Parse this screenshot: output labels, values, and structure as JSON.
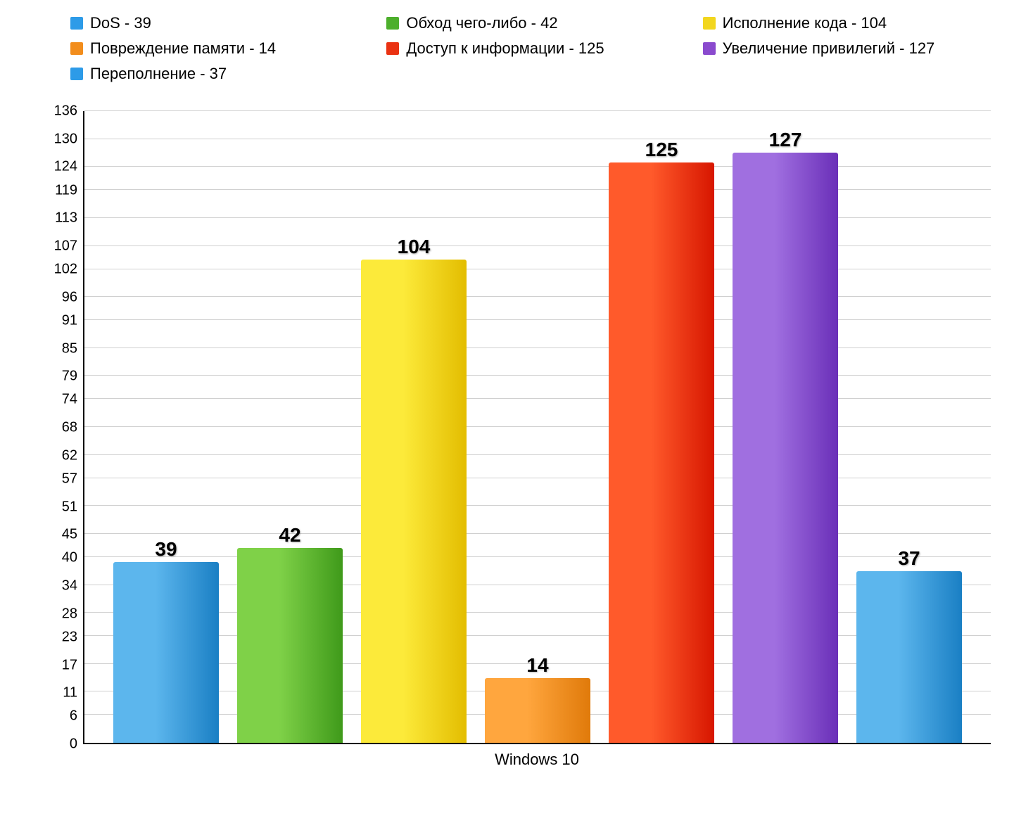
{
  "chart": {
    "type": "bar",
    "x_category_label": "Windows 10",
    "ylim": [
      0,
      136
    ],
    "y_ticks": [
      0,
      6,
      11,
      17,
      23,
      28,
      34,
      40,
      45,
      51,
      57,
      62,
      68,
      74,
      79,
      85,
      91,
      96,
      102,
      107,
      113,
      119,
      124,
      130,
      136
    ],
    "background_color": "#ffffff",
    "grid_color": "#d0d0d0",
    "axis_color": "#000000",
    "label_fontsize": 20,
    "bar_value_fontsize": 28,
    "legend_fontsize": 22,
    "series": [
      {
        "name": "DoS",
        "value": 39,
        "color_light": "#5cb6ed",
        "color_dark": "#1a7fc4",
        "swatch": "#2d9be8"
      },
      {
        "name": "Обход чего-либо",
        "value": 42,
        "color_light": "#7fd148",
        "color_dark": "#3f9a1a",
        "swatch": "#4daf2c"
      },
      {
        "name": "Исполнение кода",
        "value": 104,
        "color_light": "#fcea3a",
        "color_dark": "#e3bd00",
        "swatch": "#f2d61e"
      },
      {
        "name": "Повреждение памяти",
        "value": 14,
        "color_light": "#ffa63e",
        "color_dark": "#e07a0a",
        "swatch": "#f28d1c"
      },
      {
        "name": "Доступ к информации",
        "value": 125,
        "color_light": "#ff5a2b",
        "color_dark": "#d71600",
        "swatch": "#ea3212"
      },
      {
        "name": "Увеличение привилегий",
        "value": 127,
        "color_light": "#a06fe0",
        "color_dark": "#6a2fb8",
        "swatch": "#8a4ace"
      },
      {
        "name": "Переполнение",
        "value": 37,
        "color_light": "#5cb6ed",
        "color_dark": "#1a7fc4",
        "swatch": "#2d9be8"
      }
    ],
    "legend_order": [
      0,
      1,
      2,
      3,
      4,
      5,
      6
    ]
  }
}
